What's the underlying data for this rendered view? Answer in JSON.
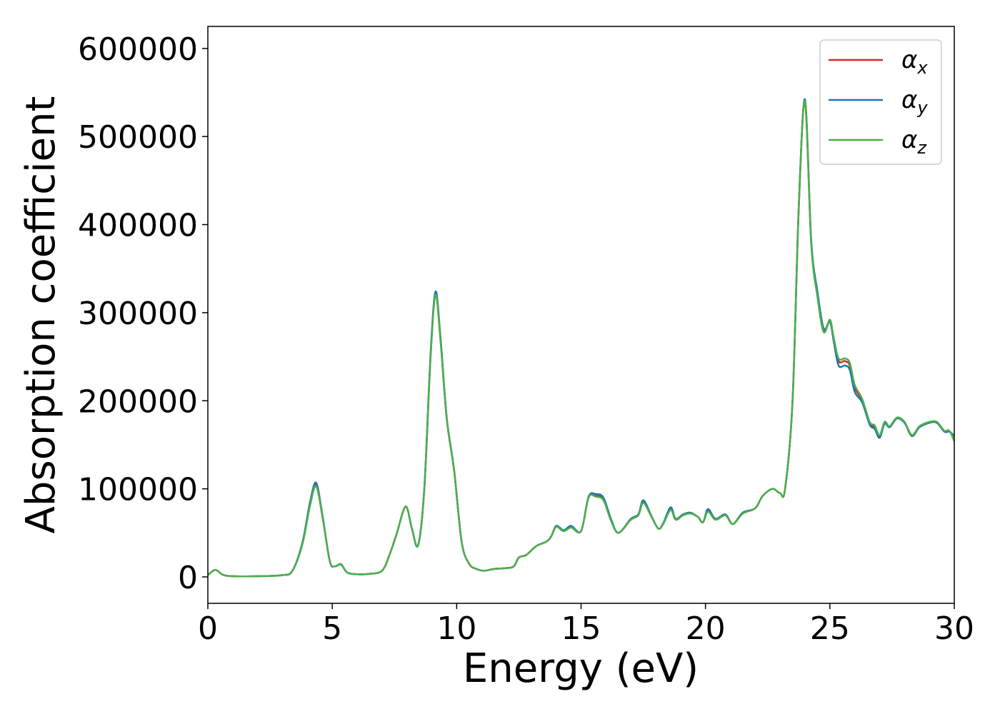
{
  "chart_data": {
    "type": "line",
    "title": "",
    "xlabel": "Energy (eV)",
    "ylabel": "Absorption coefficient",
    "xlim": [
      0,
      30
    ],
    "ylim": [
      -30000,
      625000
    ],
    "xticks": [
      0,
      5,
      10,
      15,
      20,
      25,
      30
    ],
    "yticks": [
      0,
      100000,
      200000,
      300000,
      400000,
      500000,
      600000
    ],
    "xtick_labels": [
      "0",
      "5",
      "10",
      "15",
      "20",
      "25",
      "30"
    ],
    "ytick_labels": [
      "0",
      "100000",
      "200000",
      "300000",
      "400000",
      "500000",
      "600000"
    ],
    "grid": false,
    "legend_position": "top-right",
    "series": [
      {
        "name": "αx",
        "symbol": "α",
        "subscript": "x",
        "color": "#d62728",
        "x": [
          0,
          0.3,
          0.6,
          1.0,
          2.0,
          3.0,
          3.4,
          3.8,
          4.1,
          4.35,
          4.6,
          4.9,
          5.1,
          5.35,
          5.6,
          6.0,
          6.5,
          7.0,
          7.3,
          7.6,
          7.95,
          8.2,
          8.45,
          8.7,
          8.95,
          9.15,
          9.35,
          9.6,
          9.9,
          10.2,
          10.5,
          10.8,
          11.1,
          11.5,
          12.0,
          12.3,
          12.5,
          12.8,
          13.2,
          13.6,
          13.8,
          14.0,
          14.3,
          14.6,
          15.0,
          15.3,
          15.6,
          15.9,
          16.2,
          16.5,
          17.0,
          17.3,
          17.5,
          17.8,
          18.1,
          18.3,
          18.6,
          18.8,
          19.1,
          19.4,
          19.7,
          19.9,
          20.1,
          20.4,
          20.8,
          21.1,
          21.5,
          22.0,
          22.3,
          22.7,
          23.0,
          23.2,
          23.5,
          23.75,
          24.0,
          24.25,
          24.5,
          24.75,
          25.0,
          25.15,
          25.35,
          25.6,
          25.8,
          26.0,
          26.3,
          26.6,
          26.8,
          27.0,
          27.2,
          27.4,
          27.7,
          28.0,
          28.3,
          28.6,
          29.0,
          29.3,
          29.6,
          29.8,
          30.0
        ],
        "values": [
          2000,
          8000,
          2500,
          800,
          800,
          2000,
          7000,
          38000,
          82000,
          105000,
          70000,
          18000,
          12000,
          14000,
          5000,
          3000,
          3500,
          7000,
          25000,
          50000,
          80000,
          55000,
          36000,
          100000,
          250000,
          322000,
          270000,
          180000,
          120000,
          40000,
          15000,
          9000,
          7000,
          9000,
          10000,
          12000,
          22000,
          25000,
          35000,
          40000,
          46000,
          57000,
          52000,
          57000,
          52000,
          90000,
          92000,
          88000,
          65000,
          50000,
          65000,
          70000,
          85000,
          70000,
          55000,
          60000,
          77000,
          65000,
          70000,
          72000,
          68000,
          62000,
          75000,
          65000,
          70000,
          60000,
          72000,
          78000,
          92000,
          100000,
          95000,
          100000,
          200000,
          420000,
          540000,
          380000,
          320000,
          280000,
          290000,
          270000,
          245000,
          245000,
          240000,
          215000,
          200000,
          175000,
          170000,
          160000,
          175000,
          170000,
          180000,
          175000,
          160000,
          170000,
          175000,
          175000,
          165000,
          165000,
          160000
        ]
      },
      {
        "name": "αy",
        "symbol": "α",
        "subscript": "y",
        "color": "#1f77b4",
        "x": [
          0,
          0.3,
          0.6,
          1.0,
          2.0,
          3.0,
          3.4,
          3.8,
          4.1,
          4.35,
          4.6,
          4.9,
          5.1,
          5.35,
          5.6,
          6.0,
          6.5,
          7.0,
          7.3,
          7.6,
          7.95,
          8.2,
          8.45,
          8.7,
          8.95,
          9.15,
          9.35,
          9.6,
          9.9,
          10.2,
          10.5,
          10.8,
          11.1,
          11.5,
          12.0,
          12.3,
          12.5,
          12.8,
          13.2,
          13.6,
          13.8,
          14.0,
          14.3,
          14.6,
          15.0,
          15.3,
          15.6,
          15.9,
          16.2,
          16.5,
          17.0,
          17.3,
          17.5,
          17.8,
          18.1,
          18.3,
          18.6,
          18.8,
          19.1,
          19.4,
          19.7,
          19.9,
          20.1,
          20.4,
          20.8,
          21.1,
          21.5,
          22.0,
          22.3,
          22.7,
          23.0,
          23.2,
          23.5,
          23.75,
          24.0,
          24.25,
          24.5,
          24.75,
          25.0,
          25.15,
          25.35,
          25.6,
          25.8,
          26.0,
          26.3,
          26.6,
          26.8,
          27.0,
          27.2,
          27.4,
          27.7,
          28.0,
          28.3,
          28.6,
          29.0,
          29.3,
          29.6,
          29.8,
          30.0
        ],
        "values": [
          2000,
          8000,
          2500,
          800,
          800,
          2000,
          7000,
          39000,
          84000,
          107000,
          71000,
          18000,
          12000,
          14500,
          5000,
          3000,
          3500,
          7000,
          25000,
          50000,
          80000,
          55000,
          36000,
          101000,
          252000,
          324000,
          272000,
          181000,
          121000,
          40000,
          15000,
          9000,
          7000,
          9000,
          10000,
          12000,
          22000,
          25000,
          35000,
          40000,
          46000,
          58000,
          53000,
          58000,
          52000,
          91000,
          94000,
          90000,
          66000,
          50000,
          66000,
          71000,
          87000,
          71000,
          55000,
          61000,
          79000,
          66000,
          71000,
          73000,
          68000,
          62000,
          77000,
          66000,
          71000,
          60000,
          73000,
          78000,
          92000,
          100000,
          95000,
          100000,
          200000,
          420000,
          542000,
          382000,
          324000,
          282000,
          290000,
          268000,
          240000,
          240000,
          235000,
          210000,
          198000,
          173000,
          168000,
          158000,
          174000,
          170000,
          180000,
          175000,
          160000,
          170000,
          175000,
          175000,
          165000,
          165000,
          160000
        ]
      },
      {
        "name": "αz",
        "symbol": "α",
        "subscript": "z",
        "color": "#4daf4a",
        "x": [
          0,
          0.3,
          0.6,
          1.0,
          2.0,
          3.0,
          3.4,
          3.8,
          4.1,
          4.35,
          4.6,
          4.9,
          5.1,
          5.35,
          5.6,
          6.0,
          6.5,
          7.0,
          7.3,
          7.6,
          7.95,
          8.2,
          8.45,
          8.7,
          8.95,
          9.15,
          9.35,
          9.6,
          9.9,
          10.2,
          10.5,
          10.8,
          11.1,
          11.5,
          12.0,
          12.3,
          12.5,
          12.8,
          13.2,
          13.6,
          13.8,
          14.0,
          14.3,
          14.6,
          15.0,
          15.3,
          15.6,
          15.9,
          16.2,
          16.5,
          17.0,
          17.3,
          17.5,
          17.8,
          18.1,
          18.3,
          18.6,
          18.8,
          19.1,
          19.4,
          19.7,
          19.9,
          20.1,
          20.4,
          20.8,
          21.1,
          21.5,
          22.0,
          22.3,
          22.7,
          23.0,
          23.2,
          23.5,
          23.75,
          24.0,
          24.25,
          24.5,
          24.75,
          25.0,
          25.15,
          25.35,
          25.6,
          25.8,
          26.0,
          26.3,
          26.6,
          26.8,
          27.0,
          27.2,
          27.4,
          27.7,
          28.0,
          28.3,
          28.6,
          29.0,
          29.3,
          29.6,
          29.8,
          30.0
        ],
        "values": [
          2000,
          8000,
          2500,
          800,
          800,
          2000,
          7000,
          37000,
          80000,
          103000,
          69000,
          18000,
          12000,
          14000,
          5000,
          3000,
          3500,
          7000,
          25000,
          50000,
          80000,
          55000,
          36000,
          100000,
          248000,
          320000,
          268000,
          180000,
          120000,
          40000,
          15000,
          9000,
          7000,
          9000,
          10000,
          12000,
          22000,
          25000,
          35000,
          40000,
          46000,
          57000,
          52000,
          56000,
          52000,
          90000,
          91000,
          87000,
          64000,
          50000,
          65000,
          70000,
          84000,
          70000,
          55000,
          60000,
          76000,
          65000,
          70000,
          72000,
          68000,
          62000,
          74000,
          65000,
          70000,
          60000,
          72000,
          78000,
          92000,
          100000,
          95000,
          100000,
          200000,
          420000,
          540000,
          378000,
          318000,
          278000,
          292000,
          272000,
          248000,
          248000,
          243000,
          218000,
          202000,
          176000,
          172000,
          161000,
          176000,
          171000,
          181000,
          176000,
          161000,
          171000,
          176000,
          176000,
          166000,
          166000,
          154000
        ]
      }
    ]
  }
}
